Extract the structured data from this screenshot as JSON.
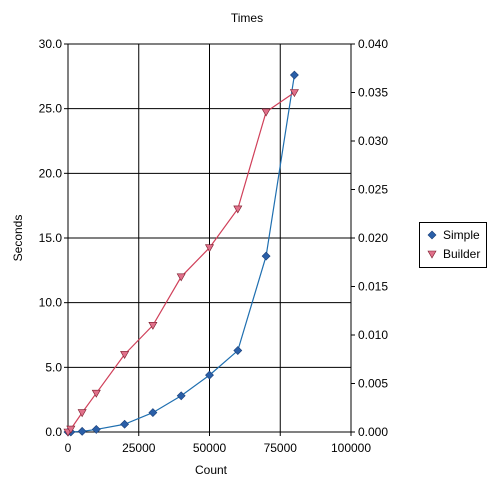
{
  "chart_data": {
    "type": "line",
    "title": "Times",
    "xlabel": "Count",
    "ylabel": "Seconds",
    "xlim": [
      0,
      100000
    ],
    "ylim_left": [
      0.0,
      30.0
    ],
    "ylim_right": [
      0.0,
      0.04
    ],
    "x_ticks": [
      "0",
      "25000",
      "50000",
      "75000",
      "100000"
    ],
    "y_left_ticks": [
      "0.0",
      "5.0",
      "10.0",
      "15.0",
      "20.0",
      "25.0",
      "30.0"
    ],
    "y_right_ticks": [
      "0.000",
      "0.005",
      "0.010",
      "0.015",
      "0.020",
      "0.025",
      "0.030",
      "0.035",
      "0.040"
    ],
    "grid": true,
    "legend_position": "right",
    "series": [
      {
        "name": "Simple",
        "axis": "left",
        "color": "#1f6fb0",
        "marker": "diamond",
        "marker_color": "#2a5fa8",
        "points": [
          {
            "x": 0,
            "y": 0.0
          },
          {
            "x": 1000,
            "y": 0.0
          },
          {
            "x": 5000,
            "y": 0.05
          },
          {
            "x": 10000,
            "y": 0.2
          },
          {
            "x": 20000,
            "y": 0.6
          },
          {
            "x": 30000,
            "y": 1.5
          },
          {
            "x": 40000,
            "y": 2.8
          },
          {
            "x": 50000,
            "y": 4.4
          },
          {
            "x": 60000,
            "y": 6.3
          },
          {
            "x": 70000,
            "y": 13.6
          },
          {
            "x": 80000,
            "y": 27.6
          }
        ]
      },
      {
        "name": "Builder",
        "axis": "right",
        "color": "#d0405a",
        "marker": "triangle-down",
        "marker_color": "#e0708a",
        "points": [
          {
            "x": 0,
            "y": 0.0
          },
          {
            "x": 1000,
            "y": 0.0003
          },
          {
            "x": 5000,
            "y": 0.002
          },
          {
            "x": 10000,
            "y": 0.004
          },
          {
            "x": 20000,
            "y": 0.008
          },
          {
            "x": 30000,
            "y": 0.011
          },
          {
            "x": 40000,
            "y": 0.016
          },
          {
            "x": 50000,
            "y": 0.019
          },
          {
            "x": 60000,
            "y": 0.023
          },
          {
            "x": 70000,
            "y": 0.033
          },
          {
            "x": 80000,
            "y": 0.035
          }
        ]
      }
    ]
  }
}
